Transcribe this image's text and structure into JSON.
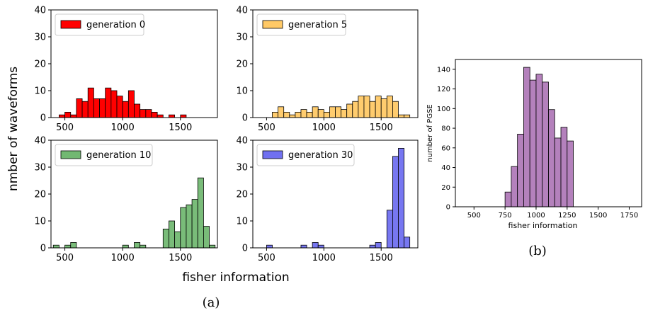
{
  "figure": {
    "caption_a": "(a)",
    "caption_b": "(b)",
    "shared_ylabel": "nmber of waveforms",
    "shared_xlabel": "fisher information"
  },
  "chart_data": [
    {
      "type": "bar",
      "legend": "generation 0",
      "color": "#ff0000",
      "xlim": [
        380,
        1820
      ],
      "ylim": [
        0,
        40
      ],
      "xticks": [
        500,
        1000,
        1500
      ],
      "yticks": [
        0,
        10,
        20,
        30,
        40
      ],
      "bin_width": 50,
      "bins": [
        {
          "x": 475,
          "y": 1
        },
        {
          "x": 525,
          "y": 2
        },
        {
          "x": 575,
          "y": 1
        },
        {
          "x": 625,
          "y": 7
        },
        {
          "x": 675,
          "y": 6
        },
        {
          "x": 725,
          "y": 11
        },
        {
          "x": 775,
          "y": 7
        },
        {
          "x": 825,
          "y": 7
        },
        {
          "x": 875,
          "y": 11
        },
        {
          "x": 925,
          "y": 10
        },
        {
          "x": 975,
          "y": 8
        },
        {
          "x": 1025,
          "y": 6
        },
        {
          "x": 1075,
          "y": 10
        },
        {
          "x": 1125,
          "y": 5
        },
        {
          "x": 1175,
          "y": 3
        },
        {
          "x": 1225,
          "y": 3
        },
        {
          "x": 1275,
          "y": 2
        },
        {
          "x": 1325,
          "y": 1
        },
        {
          "x": 1425,
          "y": 1
        },
        {
          "x": 1525,
          "y": 1
        }
      ]
    },
    {
      "type": "bar",
      "legend": "generation 5",
      "color": "#ffc966",
      "xlim": [
        380,
        1820
      ],
      "ylim": [
        0,
        40
      ],
      "xticks": [
        500,
        1000,
        1500
      ],
      "yticks": [
        0,
        10,
        20,
        30,
        40
      ],
      "bin_width": 50,
      "bins": [
        {
          "x": 575,
          "y": 2
        },
        {
          "x": 625,
          "y": 4
        },
        {
          "x": 675,
          "y": 2
        },
        {
          "x": 725,
          "y": 1
        },
        {
          "x": 775,
          "y": 2
        },
        {
          "x": 825,
          "y": 3
        },
        {
          "x": 875,
          "y": 2
        },
        {
          "x": 925,
          "y": 4
        },
        {
          "x": 975,
          "y": 3
        },
        {
          "x": 1025,
          "y": 2
        },
        {
          "x": 1075,
          "y": 4
        },
        {
          "x": 1125,
          "y": 4
        },
        {
          "x": 1175,
          "y": 3
        },
        {
          "x": 1225,
          "y": 5
        },
        {
          "x": 1275,
          "y": 6
        },
        {
          "x": 1325,
          "y": 8
        },
        {
          "x": 1375,
          "y": 8
        },
        {
          "x": 1425,
          "y": 6
        },
        {
          "x": 1475,
          "y": 8
        },
        {
          "x": 1525,
          "y": 7
        },
        {
          "x": 1575,
          "y": 8
        },
        {
          "x": 1625,
          "y": 6
        },
        {
          "x": 1675,
          "y": 1
        },
        {
          "x": 1725,
          "y": 1
        }
      ]
    },
    {
      "type": "bar",
      "legend": "generation 10",
      "color": "#72b872",
      "xlim": [
        380,
        1820
      ],
      "ylim": [
        0,
        40
      ],
      "xticks": [
        500,
        1000,
        1500
      ],
      "yticks": [
        0,
        10,
        20,
        30,
        40
      ],
      "bin_width": 50,
      "bins": [
        {
          "x": 425,
          "y": 1
        },
        {
          "x": 525,
          "y": 1
        },
        {
          "x": 575,
          "y": 2
        },
        {
          "x": 1025,
          "y": 1
        },
        {
          "x": 1125,
          "y": 2
        },
        {
          "x": 1175,
          "y": 1
        },
        {
          "x": 1375,
          "y": 7
        },
        {
          "x": 1425,
          "y": 10
        },
        {
          "x": 1475,
          "y": 6
        },
        {
          "x": 1525,
          "y": 15
        },
        {
          "x": 1575,
          "y": 16
        },
        {
          "x": 1625,
          "y": 18
        },
        {
          "x": 1675,
          "y": 26
        },
        {
          "x": 1725,
          "y": 8
        },
        {
          "x": 1775,
          "y": 1
        }
      ]
    },
    {
      "type": "bar",
      "legend": "generation 30",
      "color": "#7070f0",
      "xlim": [
        380,
        1820
      ],
      "ylim": [
        0,
        40
      ],
      "xticks": [
        500,
        1000,
        1500
      ],
      "yticks": [
        0,
        10,
        20,
        30,
        40
      ],
      "bin_width": 50,
      "bins": [
        {
          "x": 525,
          "y": 1
        },
        {
          "x": 825,
          "y": 1
        },
        {
          "x": 925,
          "y": 2
        },
        {
          "x": 975,
          "y": 1
        },
        {
          "x": 1425,
          "y": 1
        },
        {
          "x": 1475,
          "y": 2
        },
        {
          "x": 1575,
          "y": 14
        },
        {
          "x": 1625,
          "y": 34
        },
        {
          "x": 1675,
          "y": 37
        },
        {
          "x": 1725,
          "y": 4
        }
      ]
    },
    {
      "type": "bar",
      "color": "#b07ab8",
      "xlabel": "fisher information",
      "ylabel": "number of PGSE",
      "xlim": [
        350,
        1850
      ],
      "ylim": [
        0,
        150
      ],
      "xticks": [
        500,
        750,
        1000,
        1250,
        1500,
        1750
      ],
      "yticks": [
        0,
        20,
        40,
        60,
        80,
        100,
        120,
        140
      ],
      "bin_width": 50,
      "bins": [
        {
          "x": 775,
          "y": 15
        },
        {
          "x": 825,
          "y": 41
        },
        {
          "x": 875,
          "y": 74
        },
        {
          "x": 925,
          "y": 142
        },
        {
          "x": 975,
          "y": 129
        },
        {
          "x": 1025,
          "y": 135
        },
        {
          "x": 1075,
          "y": 127
        },
        {
          "x": 1125,
          "y": 99
        },
        {
          "x": 1175,
          "y": 70
        },
        {
          "x": 1225,
          "y": 81
        },
        {
          "x": 1275,
          "y": 67
        }
      ]
    }
  ]
}
